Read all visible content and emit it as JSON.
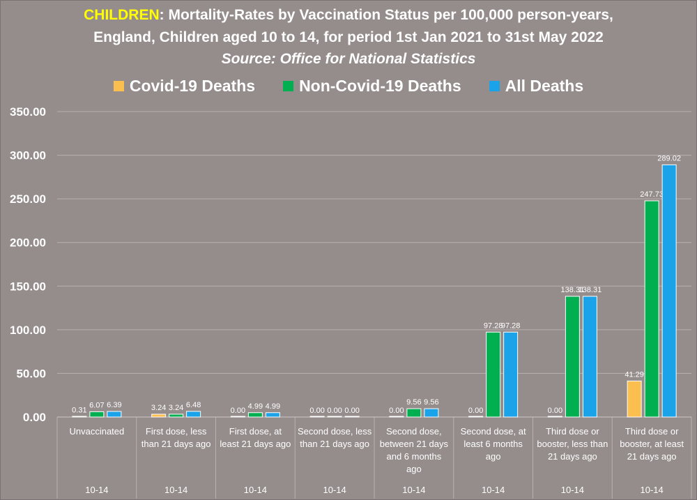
{
  "header": {
    "title_highlight": "CHILDREN",
    "title_rest": ": Mortality-Rates by Vaccination Status per 100,000 person-years,",
    "title_line2": "England, Children aged 10 to 14, for period 1st Jan 2021 to 31st May 2022",
    "source": "Source: Office for National Statistics"
  },
  "colors": {
    "background": "#958c8c",
    "covid": "#fbbf4f",
    "non_covid": "#00b050",
    "all": "#1aa3e8",
    "title_highlight": "#ffff00",
    "grid": "#b9b0b0"
  },
  "chart_data": {
    "type": "bar",
    "categories": [
      "Unvaccinated",
      "First dose, less than 21 days ago",
      "First dose, at least 21 days ago",
      "Second dose, less than 21 days ago",
      "Second dose, between 21 days and 6 months ago",
      "Second dose, at least 6 months ago",
      "Third dose or booster, less than 21 days ago",
      "Third dose or booster, at least 21 days ago"
    ],
    "category_lines": [
      [
        "Unvaccinated"
      ],
      [
        "First dose, less",
        "than 21 days ago"
      ],
      [
        "First dose, at",
        "least 21 days ago"
      ],
      [
        "Second dose, less",
        "than 21 days ago"
      ],
      [
        "Second dose,",
        "between 21 days",
        "and 6 months",
        "ago"
      ],
      [
        "Second dose, at",
        "least 6 months",
        "ago"
      ],
      [
        "Third dose or",
        "booster, less than",
        "21 days ago"
      ],
      [
        "Third dose or",
        "booster, at least",
        "21 days ago"
      ]
    ],
    "age_group_labels": [
      "10-14",
      "10-14",
      "10-14",
      "10-14",
      "10-14",
      "10-14",
      "10-14",
      "10-14"
    ],
    "series": [
      {
        "name": "Covid-19 Deaths",
        "color": "#fbbf4f",
        "values": [
          0.31,
          3.24,
          0.0,
          0.0,
          0.0,
          0.0,
          0.0,
          41.29
        ],
        "labels": [
          "0.31",
          "3.24",
          "0.00",
          "0.00",
          "0.00",
          "0.00",
          "0.00",
          "41.29"
        ]
      },
      {
        "name": "Non-Covid-19 Deaths",
        "color": "#00b050",
        "values": [
          6.07,
          3.24,
          4.99,
          0.0,
          9.56,
          97.28,
          138.31,
          247.73
        ],
        "labels": [
          "6.07",
          "3.24",
          "4.99",
          "0.00",
          "9.56",
          "97.28",
          "138.31",
          "247.73"
        ]
      },
      {
        "name": "All Deaths",
        "color": "#1aa3e8",
        "values": [
          6.39,
          6.48,
          4.99,
          0.0,
          9.56,
          97.28,
          138.31,
          289.02
        ],
        "labels": [
          "6.39",
          "6.48",
          "4.99",
          "0.00",
          "9.56",
          "97.28",
          "138.31",
          "289.02"
        ]
      }
    ],
    "ylim": [
      0,
      350
    ],
    "yticks": [
      0,
      50,
      100,
      150,
      200,
      250,
      300,
      350
    ],
    "ytick_labels": [
      "0.00",
      "50.00",
      "100.00",
      "150.00",
      "200.00",
      "250.00",
      "300.00",
      "350.00"
    ],
    "grid": true,
    "legend_position": "top"
  }
}
